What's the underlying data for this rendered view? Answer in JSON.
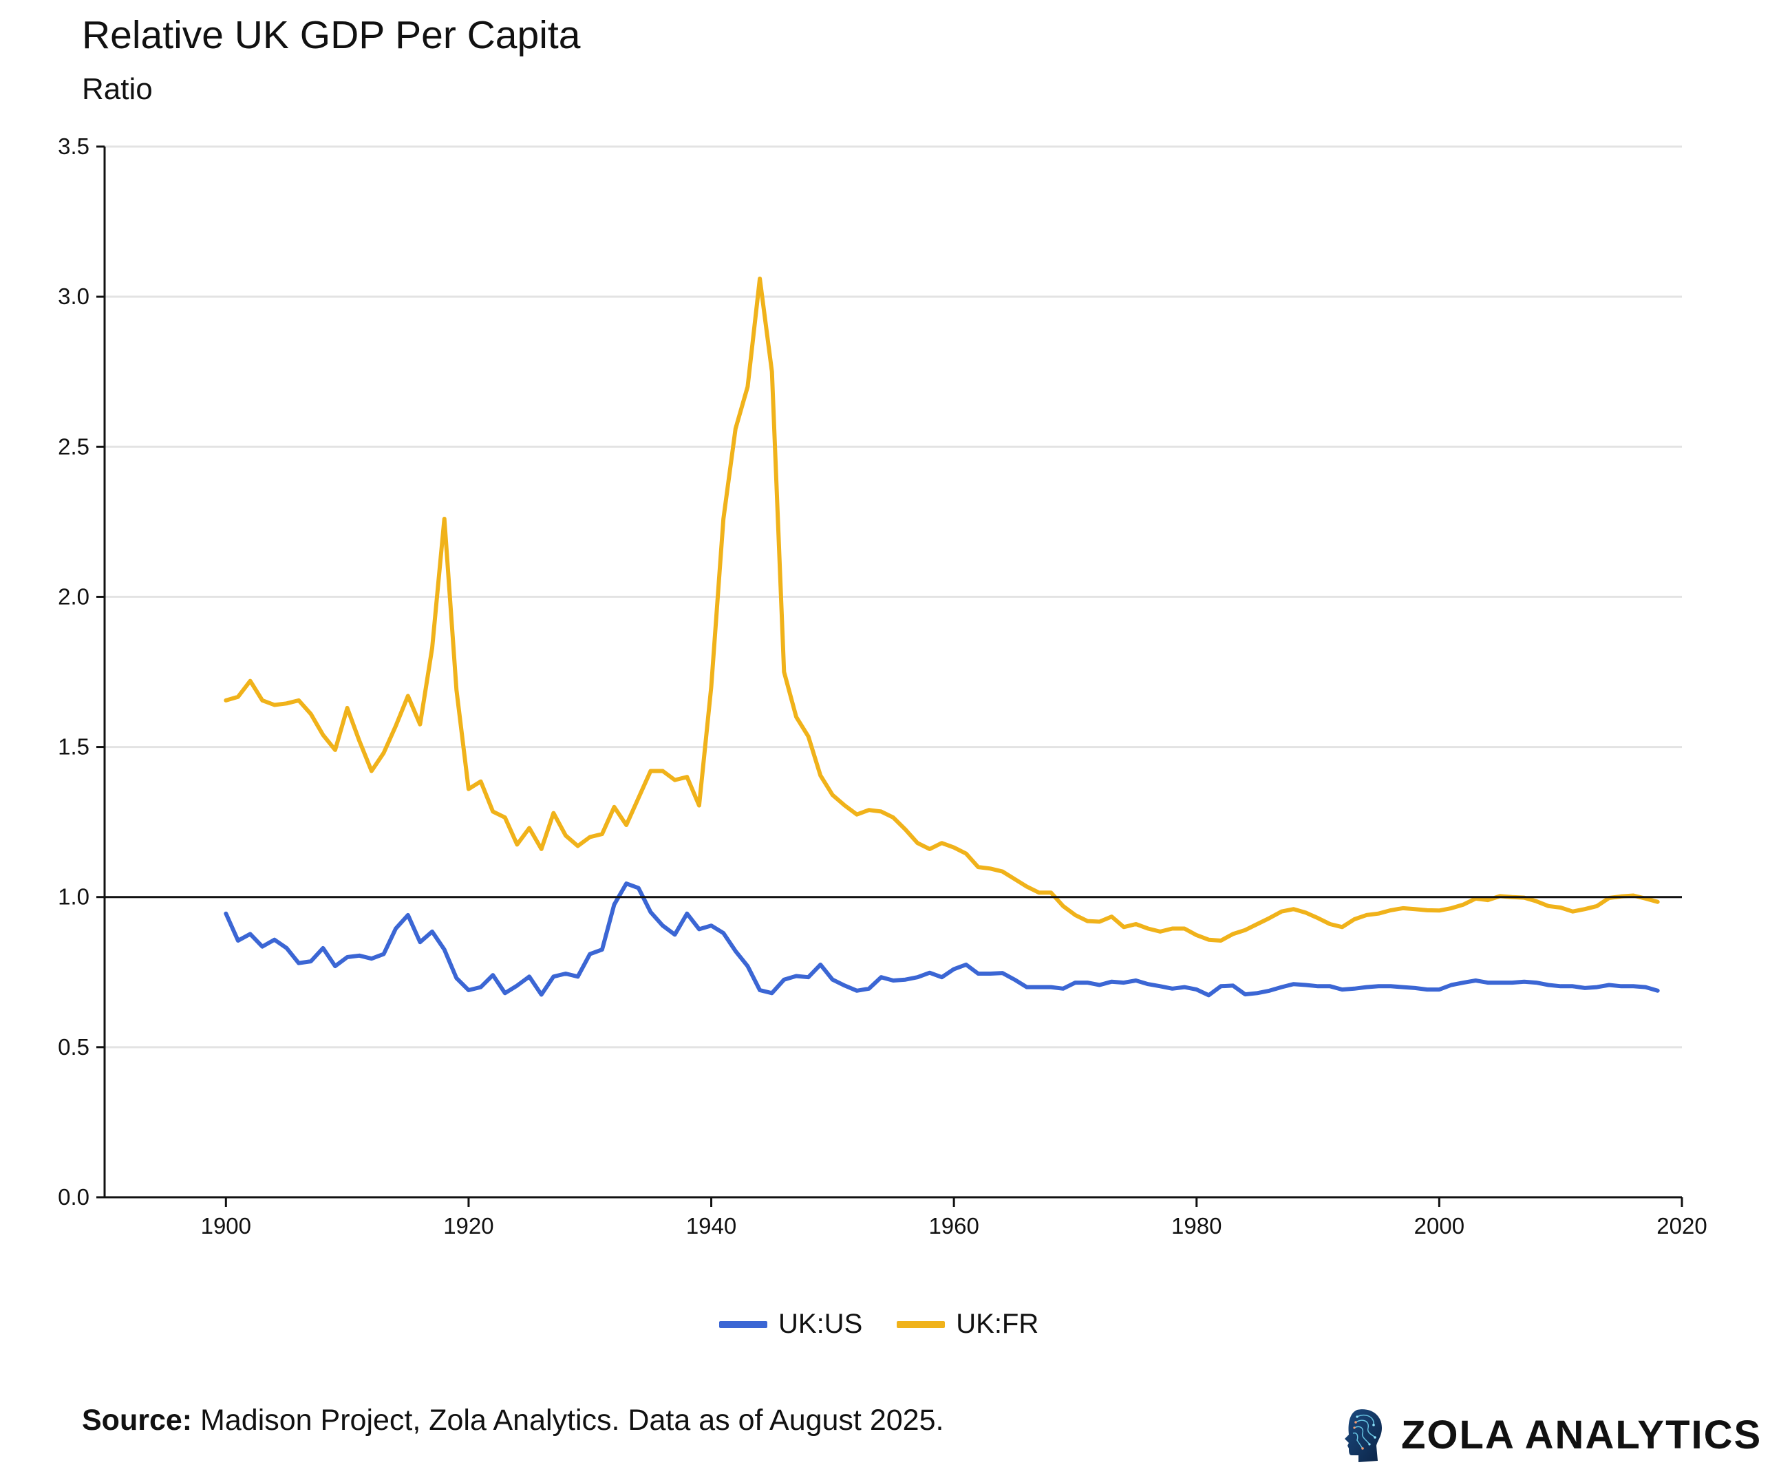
{
  "header": {
    "title": "Relative UK GDP Per Capita",
    "subtitle": "Ratio"
  },
  "footer": {
    "source_label": "Source:",
    "source_text": " Madison Project, Zola Analytics. Data as of August 2025.",
    "brand": "ZOLA ANALYTICS",
    "logo_icon": "head-circuit-logo"
  },
  "chart_data": {
    "type": "line",
    "title": "Relative UK GDP Per Capita",
    "ylabel": "Ratio",
    "xlabel": "",
    "xlim": [
      1890,
      2020
    ],
    "ylim": [
      0,
      3.5
    ],
    "xticks": [
      1900,
      1920,
      1940,
      1960,
      1980,
      2000,
      2020
    ],
    "yticks": [
      "0.0",
      "0.5",
      "1.0",
      "1.5",
      "2.0",
      "2.5",
      "3.0",
      "3.5"
    ],
    "grid": "horizontal",
    "reference_line": 1.0,
    "legend_position": "bottom",
    "x_start": 1900,
    "series": [
      {
        "name": "UK:US",
        "color": "#3b66d4",
        "values": [
          0.945,
          0.855,
          0.877,
          0.835,
          0.858,
          0.83,
          0.78,
          0.786,
          0.83,
          0.77,
          0.8,
          0.805,
          0.795,
          0.81,
          0.895,
          0.94,
          0.85,
          0.885,
          0.825,
          0.73,
          0.69,
          0.7,
          0.74,
          0.68,
          0.705,
          0.735,
          0.675,
          0.735,
          0.745,
          0.735,
          0.81,
          0.825,
          0.975,
          1.045,
          1.03,
          0.95,
          0.905,
          0.875,
          0.945,
          0.893,
          0.905,
          0.88,
          0.82,
          0.77,
          0.69,
          0.68,
          0.725,
          0.737,
          0.733,
          0.775,
          0.725,
          0.705,
          0.688,
          0.695,
          0.733,
          0.722,
          0.725,
          0.733,
          0.748,
          0.733,
          0.76,
          0.775,
          0.745,
          0.745,
          0.747,
          0.725,
          0.7,
          0.7,
          0.7,
          0.695,
          0.715,
          0.715,
          0.707,
          0.718,
          0.715,
          0.722,
          0.71,
          0.703,
          0.695,
          0.7,
          0.692,
          0.673,
          0.703,
          0.705,
          0.676,
          0.68,
          0.688,
          0.7,
          0.71,
          0.707,
          0.703,
          0.703,
          0.692,
          0.695,
          0.7,
          0.703,
          0.703,
          0.7,
          0.697,
          0.692,
          0.692,
          0.707,
          0.715,
          0.722,
          0.715,
          0.715,
          0.715,
          0.718,
          0.715,
          0.707,
          0.703,
          0.703,
          0.697,
          0.7,
          0.707,
          0.703,
          0.703,
          0.7,
          0.688
        ]
      },
      {
        "name": "UK:FR",
        "color": "#f0b21a",
        "values": [
          1.655,
          1.667,
          1.72,
          1.655,
          1.64,
          1.645,
          1.655,
          1.61,
          1.54,
          1.49,
          1.63,
          1.52,
          1.42,
          1.48,
          1.57,
          1.67,
          1.575,
          1.83,
          2.26,
          1.69,
          1.36,
          1.385,
          1.285,
          1.265,
          1.175,
          1.23,
          1.16,
          1.28,
          1.205,
          1.17,
          1.2,
          1.21,
          1.3,
          1.24,
          1.33,
          1.42,
          1.42,
          1.39,
          1.4,
          1.305,
          1.7,
          2.26,
          2.56,
          2.7,
          3.06,
          2.75,
          1.75,
          1.6,
          1.535,
          1.405,
          1.34,
          1.305,
          1.275,
          1.29,
          1.285,
          1.265,
          1.225,
          1.18,
          1.16,
          1.18,
          1.165,
          1.145,
          1.1,
          1.095,
          1.085,
          1.06,
          1.035,
          1.015,
          1.015,
          0.97,
          0.94,
          0.92,
          0.918,
          0.935,
          0.9,
          0.91,
          0.895,
          0.885,
          0.895,
          0.895,
          0.873,
          0.858,
          0.855,
          0.877,
          0.89,
          0.91,
          0.93,
          0.952,
          0.96,
          0.948,
          0.93,
          0.91,
          0.9,
          0.926,
          0.94,
          0.945,
          0.956,
          0.963,
          0.96,
          0.956,
          0.955,
          0.963,
          0.975,
          0.995,
          0.99,
          1.003,
          1.0,
          0.998,
          0.986,
          0.97,
          0.965,
          0.952,
          0.96,
          0.97,
          0.997,
          1.002,
          1.005,
          0.995,
          0.984
        ]
      }
    ]
  }
}
